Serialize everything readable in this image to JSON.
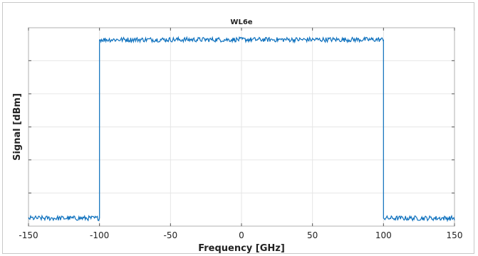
{
  "chart_data": {
    "type": "line",
    "title": "WL6e",
    "xlabel": "Frequency [GHz]",
    "ylabel": "Signal [dBm]",
    "xlim": [
      -150,
      150
    ],
    "xticks": [
      -150,
      -100,
      -50,
      0,
      50,
      100,
      150
    ],
    "xtick_labels": [
      "-150",
      "-100",
      "-50",
      "0",
      "50",
      "100",
      "150"
    ],
    "y_tick_labels_shown": false,
    "grid": true,
    "series": [
      {
        "color": "#0b6fbd",
        "profile": "flat-top passband between -100 and 100 GHz, noise floor outside",
        "passband_x": [
          -100,
          100
        ],
        "passband_level": 0.94,
        "floor_level": 0.04,
        "noise_amplitude": 0.012
      }
    ]
  }
}
